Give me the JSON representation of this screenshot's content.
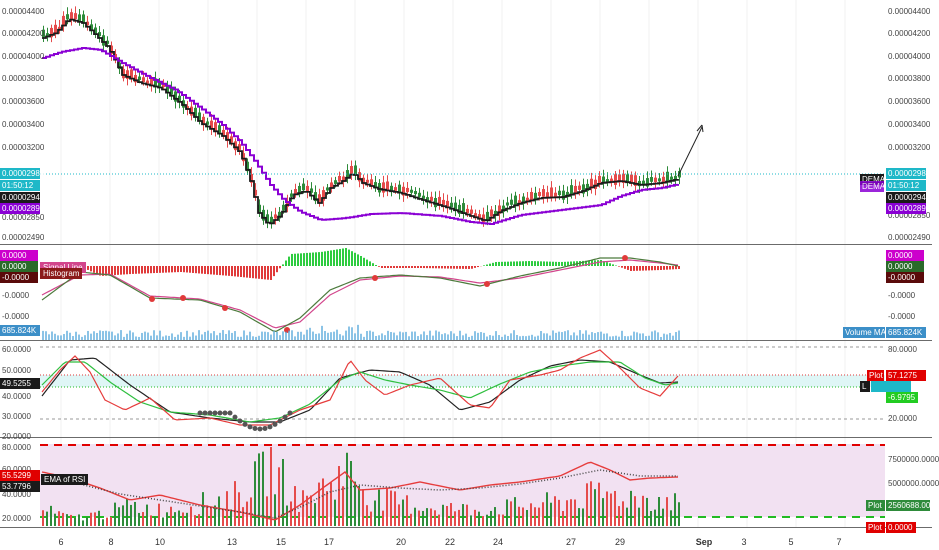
{
  "colors": {
    "up": "#2e8b3a",
    "down": "#e54b4b",
    "dema": "#1a1a1a",
    "ma_purple": "#8a00d4",
    "price_line": "#1eb8c8",
    "hist_up": "#2ecc40",
    "hist_down": "#e03a3a",
    "volume": "#5aa9dc",
    "macd_line": "#4c7a3c",
    "signal_line": "#d2458c",
    "stoch_k": "#e63c3c",
    "stoch_d": "#2fbf3f",
    "rsi_fill": "#f2e1f2",
    "dashed_red": "#e00000",
    "dashed_green": "#22bb22"
  },
  "main": {
    "price_axis_right": [
      "0.00004400",
      "0.00004200",
      "0.00004000",
      "0.00003800",
      "0.00003600",
      "0.00003400",
      "0.00003200",
      "0.00002850",
      "0.00002490"
    ],
    "price_axis_left": [
      "0.00004400",
      "0.00004200",
      "0.00004000",
      "0.00003800",
      "0.00003600",
      "0.00003400",
      "0.00003200",
      "0.00002850",
      "0.00002490"
    ],
    "last_price": "0.00002988",
    "countdown": "01:50:12",
    "dema_value": "0.00002949",
    "ma_value": "0.00002895",
    "dema_label": "DEMA",
    "dema_label2": "DEMA"
  },
  "macd": {
    "signal_label": "Signal Line",
    "histogram_label": "Histogram",
    "values": [
      "0.0000",
      "0.0000",
      "-0.0000"
    ],
    "axis": [
      "-0.0000",
      "-0.0000"
    ],
    "right_values": [
      "0.0000",
      "0.0000",
      "-0.0000"
    ]
  },
  "volume": {
    "left_value": "685.824K",
    "right_label": "Volume MA",
    "right_value": "685.824K"
  },
  "stoch": {
    "axis_left": [
      "60.0000",
      "50.0000",
      "40.0000",
      "30.0000",
      "20.0000"
    ],
    "current": "49.5255",
    "axis_right": [
      "80.0000",
      "20.0000"
    ],
    "plot_label": "Plot",
    "plot_value": "57.1275",
    "marker": "L",
    "green_value": "-6.9795"
  },
  "rsi": {
    "axis_left": [
      "80.0000",
      "60.0000",
      "40.0000",
      "20.0000"
    ],
    "rsi_value": "55.5299",
    "ema_value": "53.7796",
    "ema_label": "EMA of RSI",
    "axis_right": [
      "7500000.0000",
      "5000000.0000"
    ],
    "plot_label": "Plot",
    "plot_green_value": "2560688.0000",
    "plot_red_value": "0.0000"
  },
  "time_axis": {
    "labels": [
      "6",
      "8",
      "10",
      "13",
      "15",
      "17",
      "20",
      "22",
      "24",
      "27",
      "29",
      "Sep",
      "3",
      "5",
      "7"
    ]
  }
}
